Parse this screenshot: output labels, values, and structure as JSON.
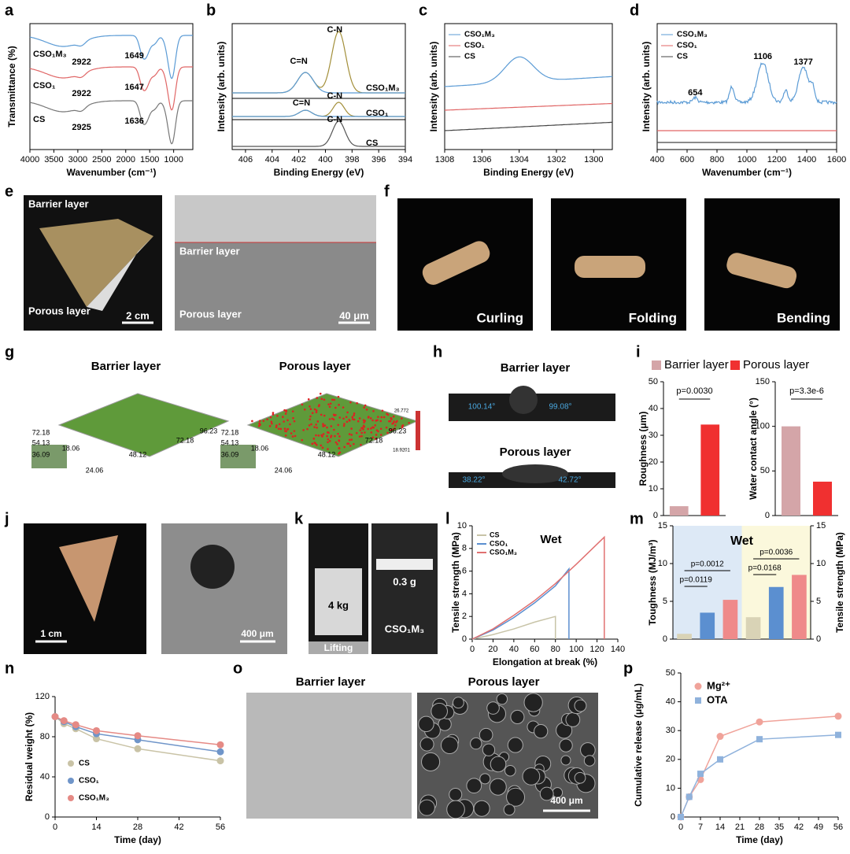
{
  "panels": {
    "a": {
      "label": "a",
      "ylabel": "Transmittance (%)",
      "xlabel": "Wavenumber (cm⁻¹)",
      "xlim": [
        4000,
        600
      ],
      "xticks": [
        4000,
        3500,
        3000,
        2500,
        2000,
        1500,
        1000
      ],
      "series": [
        {
          "name": "CSO₁M₃",
          "color": "#5b9bd5",
          "peaks": [
            "2922",
            "1649"
          ]
        },
        {
          "name": "CSO₁",
          "color": "#e06666",
          "peaks": [
            "2922",
            "1647"
          ]
        },
        {
          "name": "CS",
          "color": "#777777",
          "peaks": [
            "2925",
            "1636"
          ]
        }
      ]
    },
    "b": {
      "label": "b",
      "ylabel": "Intensity (arb. units)",
      "xlabel": "Binding Energy (eV)",
      "xlim": [
        407,
        394
      ],
      "xticks": [
        406,
        404,
        402,
        400,
        398,
        396,
        394
      ],
      "series": [
        {
          "name": "CSO₁M₃"
        },
        {
          "name": "CSO₁"
        },
        {
          "name": "CS"
        }
      ],
      "annotations": [
        "C=N",
        "C-N",
        "C=N",
        "C-N",
        "C-N"
      ]
    },
    "c": {
      "label": "c",
      "ylabel": "Intensity (arb. units)",
      "xlabel": "Binding Energy (eV)",
      "xlim": [
        1308,
        1299
      ],
      "xticks": [
        1308,
        1306,
        1304,
        1302,
        1300
      ],
      "series": [
        {
          "name": "CSO₁M₃",
          "color": "#5b9bd5"
        },
        {
          "name": "CSO₁",
          "color": "#e06666"
        },
        {
          "name": "CS",
          "color": "#444444"
        }
      ]
    },
    "d": {
      "label": "d",
      "ylabel": "Intensity (arb. units)",
      "xlabel": "Wavenumber (cm⁻¹)",
      "xlim": [
        400,
        1600
      ],
      "xticks": [
        400,
        600,
        800,
        1000,
        1200,
        1400,
        1600
      ],
      "series": [
        {
          "name": "CSO₁M₃",
          "color": "#5b9bd5"
        },
        {
          "name": "CSO₁",
          "color": "#e06666"
        },
        {
          "name": "CS",
          "color": "#444444"
        }
      ],
      "annotations": [
        "654",
        "1106",
        "1377"
      ]
    },
    "e": {
      "label": "e",
      "texts": [
        "Barrier layer",
        "Porous layer",
        "2 cm",
        "Barrier layer",
        "Porous layer",
        "40 μm"
      ]
    },
    "f": {
      "label": "f",
      "texts": [
        "Curling",
        "Folding",
        "Bending"
      ]
    },
    "g": {
      "label": "g",
      "titles": [
        "Barrier layer",
        "Porous layer"
      ],
      "axis_texts": [
        "72.18",
        "54.13",
        "36.09",
        "18.06",
        "24.06",
        "48.12",
        "72.18",
        "96.23"
      ],
      "scale_texts": [
        "26.772",
        "18.9201"
      ]
    },
    "h": {
      "label": "h",
      "titles": [
        "Barrier layer",
        "Porous layer"
      ],
      "angles": [
        "100.14°",
        "99.08°",
        "38.22°",
        "42.72°"
      ]
    },
    "i": {
      "label": "i",
      "legend": [
        "Barrier layer",
        "Porous layer"
      ],
      "colors": [
        "#d4a5a8",
        "#f03030"
      ],
      "roughness": {
        "ylabel": "Roughness (μm)",
        "values": [
          3.5,
          34
        ],
        "ylim": [
          0,
          50
        ],
        "yticks": [
          0,
          10,
          20,
          30,
          40,
          50
        ],
        "p": "p=0.0030"
      },
      "contact": {
        "ylabel": "Water contact angle (°)",
        "values": [
          100,
          38
        ],
        "ylim": [
          0,
          150
        ],
        "yticks": [
          0,
          50,
          100,
          150
        ],
        "p": "p=3.3e-6"
      }
    },
    "j": {
      "label": "j",
      "texts": [
        "1 cm",
        "400 μm"
      ]
    },
    "k": {
      "label": "k",
      "texts": [
        "4 kg",
        "Lifting",
        "0.3 g",
        "CSO₁M₃"
      ]
    },
    "l": {
      "label": "l",
      "title": "Wet",
      "ylabel": "Tensile strength (MPa)",
      "xlabel": "Elongation at break (%)",
      "xlim": [
        0,
        140
      ],
      "xticks": [
        0,
        20,
        40,
        60,
        80,
        100,
        120,
        140
      ],
      "ylim": [
        0,
        10
      ],
      "yticks": [
        0,
        2,
        4,
        6,
        8,
        10
      ],
      "series": [
        {
          "name": "CS",
          "color": "#c8c4a8",
          "x": [
            0,
            20,
            40,
            60,
            80,
            80
          ],
          "y": [
            0,
            0.4,
            0.9,
            1.5,
            2.0,
            0
          ]
        },
        {
          "name": "CSO₁",
          "color": "#5b8fd0",
          "x": [
            0,
            20,
            40,
            60,
            80,
            93,
            93
          ],
          "y": [
            0,
            0.8,
            1.9,
            3.2,
            4.7,
            6.2,
            0
          ]
        },
        {
          "name": "CSO₁M₃",
          "color": "#e07070",
          "x": [
            0,
            20,
            40,
            60,
            80,
            100,
            127,
            127
          ],
          "y": [
            0,
            0.9,
            2.1,
            3.4,
            4.9,
            6.6,
            9.0,
            0
          ]
        }
      ]
    },
    "m": {
      "label": "m",
      "title": "Wet",
      "colors": [
        "#d9d3b6",
        "#5b8fd0",
        "#ef8a8a"
      ],
      "toughness": {
        "ylabel": "Toughness (MJ/m³)",
        "values": [
          0.7,
          3.5,
          5.2
        ],
        "ylim": [
          0,
          15
        ],
        "yticks": [
          0,
          5,
          10,
          15
        ],
        "p": [
          "p=0.0119",
          "p=0.0012"
        ]
      },
      "tensile": {
        "ylabel": "Tensile strength (MPa)",
        "values": [
          2.9,
          6.9,
          8.5
        ],
        "ylim": [
          0,
          15
        ],
        "yticks": [
          0,
          5,
          10,
          15
        ],
        "p": [
          "p=0.0168",
          "p=0.0036"
        ]
      }
    },
    "n": {
      "label": "n",
      "ylabel": "Residual weight (%)",
      "xlabel": "Time (day)",
      "xlim": [
        0,
        56
      ],
      "xticks": [
        0,
        14,
        28,
        42,
        56
      ],
      "ylim": [
        0,
        120
      ],
      "yticks": [
        0,
        40,
        80,
        120
      ],
      "x": [
        0,
        3,
        7,
        14,
        28,
        56
      ],
      "series": [
        {
          "name": "CS",
          "color": "#c9c3a6",
          "values": [
            100,
            93,
            88,
            78,
            68,
            56
          ]
        },
        {
          "name": "CSO₁",
          "color": "#6f95c9",
          "values": [
            100,
            95,
            90,
            83,
            77,
            65
          ]
        },
        {
          "name": "CSO₁M₃",
          "color": "#e58a85",
          "values": [
            100,
            96,
            92,
            86,
            81,
            72
          ]
        }
      ]
    },
    "o": {
      "label": "o",
      "texts": [
        "Barrier layer",
        "Porous layer",
        "400 μm"
      ]
    },
    "p": {
      "label": "p",
      "ylabel": "Cumulative release (μg/mL)",
      "xlabel": "Time (day)",
      "xlim": [
        0,
        56
      ],
      "xticks": [
        0,
        7,
        14,
        21,
        28,
        35,
        42,
        49,
        56
      ],
      "ylim": [
        0,
        50
      ],
      "yticks": [
        0,
        10,
        20,
        30,
        40,
        50
      ],
      "x": [
        0,
        3,
        7,
        14,
        28,
        56
      ],
      "series": [
        {
          "name": "Mg²⁺",
          "color": "#f0a39a",
          "values": [
            0,
            7,
            13,
            28,
            33,
            35
          ]
        },
        {
          "name": "OTA",
          "color": "#8fb2dc",
          "values": [
            0,
            7,
            15,
            20,
            27,
            28.5
          ]
        }
      ]
    }
  }
}
